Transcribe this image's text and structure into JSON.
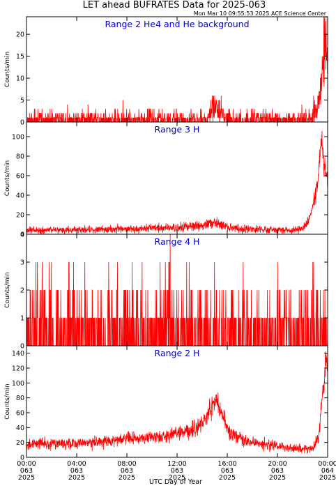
{
  "header": {
    "title": "LET ahead BUFRATES Data for 2025-063",
    "stamp": "Mon Mar 10 09:55:53 2025 ACE Science Center"
  },
  "colors": {
    "trace": "#ff0000",
    "panel_title": "#0000cc",
    "axes": "#000000"
  },
  "chart_data": [
    {
      "type": "line",
      "title": "Range 2 He4 and He background",
      "ylabel": "Counts/min",
      "ylim": [
        0,
        24
      ],
      "yticks": [
        0,
        5,
        10,
        15,
        20
      ],
      "xlim": [
        0,
        24
      ],
      "profile": [
        [
          0,
          0.6
        ],
        [
          14,
          0.7
        ],
        [
          14.5,
          1.5
        ],
        [
          15,
          3.5
        ],
        [
          15.5,
          1.5
        ],
        [
          16.5,
          0.7
        ],
        [
          22.7,
          0.7
        ],
        [
          23.2,
          3
        ],
        [
          23.5,
          8
        ],
        [
          23.75,
          16
        ],
        [
          24,
          18
        ]
      ],
      "noise": "poisson"
    },
    {
      "type": "line",
      "title": "Range 3 H",
      "ylabel": "Counts/min",
      "ylim": [
        0,
        115
      ],
      "yticks": [
        0,
        20,
        40,
        60,
        80,
        100
      ],
      "xlim": [
        0,
        24
      ],
      "profile": [
        [
          0,
          4
        ],
        [
          8,
          5
        ],
        [
          12,
          7
        ],
        [
          14,
          9
        ],
        [
          15,
          12
        ],
        [
          16,
          7
        ],
        [
          18,
          5
        ],
        [
          21,
          4
        ],
        [
          22,
          6
        ],
        [
          22.5,
          15
        ],
        [
          23,
          38
        ],
        [
          23.3,
          60
        ],
        [
          23.45,
          100
        ],
        [
          23.7,
          72
        ],
        [
          24,
          55
        ]
      ],
      "noise": "gaussian"
    },
    {
      "type": "line",
      "title": "Range 4 H",
      "ylabel": "Counts/min",
      "ylim": [
        0,
        4
      ],
      "yticks": [
        0,
        1,
        2,
        3,
        4
      ],
      "xlim": [
        0,
        24
      ],
      "profile": [
        [
          0,
          0.55
        ],
        [
          24,
          0.6
        ]
      ],
      "noise": "poisson",
      "maxval": 3,
      "spikes": [
        [
          11.45,
          4
        ]
      ]
    },
    {
      "type": "line",
      "title": "Range 2 H",
      "ylabel": "Counts/min",
      "ylim": [
        0,
        150
      ],
      "yticks": [
        0,
        20,
        40,
        60,
        80,
        100,
        120,
        140
      ],
      "xlim": [
        0,
        24
      ],
      "profile": [
        [
          0,
          17
        ],
        [
          4,
          19
        ],
        [
          8,
          24
        ],
        [
          11,
          28
        ],
        [
          13,
          36
        ],
        [
          14.2,
          48
        ],
        [
          14.8,
          68
        ],
        [
          15.1,
          78
        ],
        [
          15.6,
          58
        ],
        [
          16.2,
          32
        ],
        [
          17.5,
          22
        ],
        [
          20,
          15
        ],
        [
          22,
          11
        ],
        [
          22.9,
          13
        ],
        [
          23.3,
          32
        ],
        [
          23.6,
          85
        ],
        [
          23.85,
          135
        ],
        [
          24,
          120
        ]
      ],
      "noise": "gaussian"
    }
  ],
  "x_axis": {
    "xlabel": "UTC Day of Year",
    "ticks": [
      {
        "hour": 0,
        "time": "00:00",
        "doy": "063",
        "year": "2025"
      },
      {
        "hour": 4,
        "time": "04:00",
        "doy": "063",
        "year": "2025"
      },
      {
        "hour": 8,
        "time": "08:00",
        "doy": "063",
        "year": "2025"
      },
      {
        "hour": 12,
        "time": "12:00",
        "doy": "063",
        "year": "2025"
      },
      {
        "hour": 16,
        "time": "16:00",
        "doy": "063",
        "year": "2025"
      },
      {
        "hour": 20,
        "time": "20:00",
        "doy": "063",
        "year": "2025"
      },
      {
        "hour": 24,
        "time": "00:00",
        "doy": "064",
        "year": "2025"
      }
    ]
  }
}
